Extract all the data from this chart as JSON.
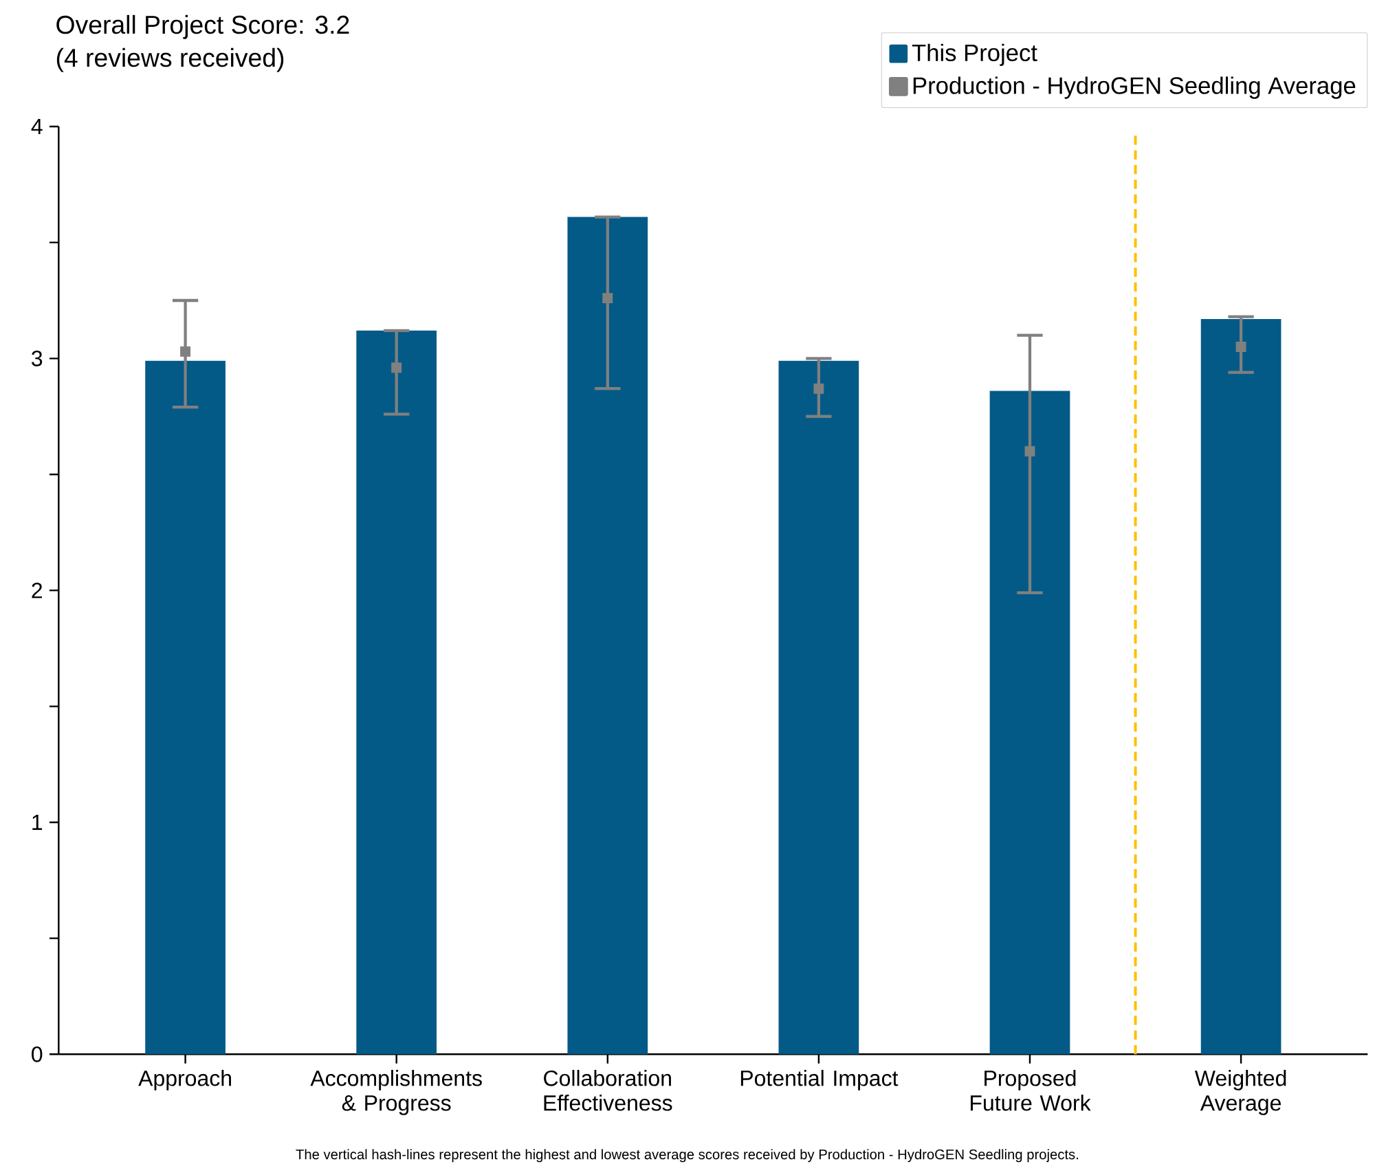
{
  "chart_data": {
    "type": "bar",
    "title": "Overall Project Score: 3.2",
    "subtitle": "(4 reviews received)",
    "categories": [
      "Approach",
      "Accomplishments & Progress",
      "Collaboration Effectiveness",
      "Potential Impact",
      "Proposed Future Work",
      "Weighted Average"
    ],
    "series": [
      {
        "name": "This Project",
        "color": "#035a87",
        "values": [
          2.99,
          3.12,
          3.61,
          2.99,
          2.86,
          3.17
        ]
      },
      {
        "name": "Production - HydroGEN Seedling Average",
        "type": "scatter",
        "color": "#808080",
        "marker": "square",
        "values": [
          3.03,
          2.96,
          3.26,
          2.87,
          2.6,
          3.05
        ],
        "errors": [
          [
            2.79,
            3.25
          ],
          [
            2.76,
            3.12
          ],
          [
            2.87,
            3.61
          ],
          [
            2.75,
            3.0
          ],
          [
            1.99,
            3.1
          ],
          [
            2.94,
            3.18
          ]
        ]
      }
    ],
    "ylim": [
      0,
      4
    ],
    "yticks": [
      0,
      {
        "value": 0.5,
        "label": null
      },
      1,
      {
        "value": 1.5,
        "label": null
      },
      2,
      {
        "value": 2.5,
        "label": null
      },
      3,
      {
        "value": 3.5,
        "label": null
      },
      4
    ],
    "legend": "top right",
    "annotations": [
      "The vertical hash-lines represent the highest and lowest average scores received by Production - HydroGEN Seedling projects."
    ]
  }
}
